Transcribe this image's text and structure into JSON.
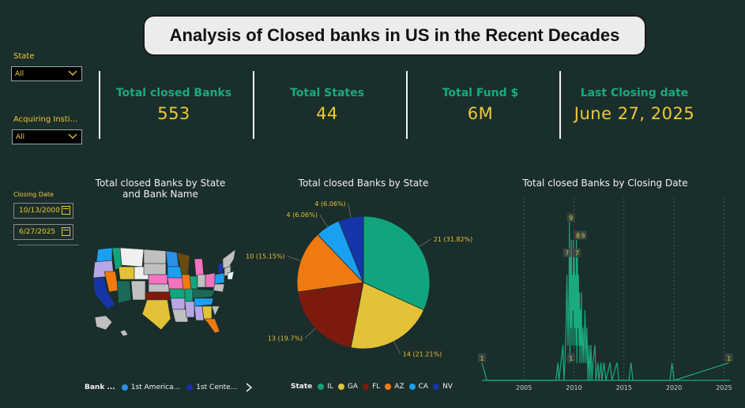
{
  "title": "Analysis of Closed banks in US in the Recent Decades",
  "filters": {
    "state": {
      "label": "State",
      "value": "All"
    },
    "acquiring": {
      "label": "Acquiring Insti...",
      "value": "All"
    },
    "closing_date": {
      "label": "Closing Date",
      "from": "10/13/2000",
      "to": "6/27/2025"
    }
  },
  "kpis": [
    {
      "label": "Total closed Banks",
      "value": "553"
    },
    {
      "label": "Total States",
      "value": "44"
    },
    {
      "label": "Total Fund $",
      "value": "6M"
    },
    {
      "label": "Last Closing date",
      "value": "June 27, 2025"
    }
  ],
  "map_card": {
    "title": "Total closed Banks by State and Bank Name",
    "legend_label": "Bank ...",
    "legend_items": [
      {
        "label": "1st America...",
        "color": "#2b8fe6"
      },
      {
        "label": "1st Cente...",
        "color": "#1c2ea8"
      }
    ]
  },
  "pie_card": {
    "title": "Total closed Banks by State",
    "legend_label": "State"
  },
  "line_card": {
    "title": "Total closed Banks by Closing Date"
  },
  "chart_data": [
    {
      "type": "pie",
      "title": "Total closed Banks by State",
      "legend_title": "State",
      "categories": [
        "IL",
        "GA",
        "FL",
        "AZ",
        "CA",
        "NV"
      ],
      "values": [
        21,
        14,
        13,
        10,
        4,
        4
      ],
      "labels": [
        "21 (31.82%)",
        "14 (21.21%)",
        "13 (19.7%)",
        "10 (15.15%)",
        "4 (6.06%)",
        "4 (6.06%)"
      ],
      "colors": [
        "#10a57e",
        "#e3c238",
        "#7d1a0e",
        "#f07a10",
        "#1aa0f0",
        "#1535a8"
      ]
    },
    {
      "type": "line",
      "title": "Total closed Banks by Closing Date",
      "x_ticks": [
        "2005",
        "2010",
        "2015",
        "2020",
        "2025"
      ],
      "xlim": [
        2000.8,
        2025.6
      ],
      "ylim": [
        0,
        10
      ],
      "color": "#1aaa7c",
      "annotations": [
        {
          "x": 2000.8,
          "y": 1,
          "label": "1"
        },
        {
          "x": 2009.7,
          "y": 9,
          "label": "9"
        },
        {
          "x": 2010.9,
          "y": 8,
          "label": "8"
        },
        {
          "x": 2009.3,
          "y": 7,
          "label": "7"
        },
        {
          "x": 2010.3,
          "y": 7,
          "label": "7"
        },
        {
          "x": 2010.4,
          "y": 8,
          "label": "8"
        },
        {
          "x": 2009.7,
          "y": 1,
          "label": "1"
        },
        {
          "x": 2025.5,
          "y": 1,
          "label": "1"
        }
      ],
      "points": [
        [
          2000.8,
          1
        ],
        [
          2001.3,
          0
        ],
        [
          2008.2,
          0
        ],
        [
          2008.4,
          1
        ],
        [
          2008.5,
          0
        ],
        [
          2008.9,
          2
        ],
        [
          2009.0,
          0
        ],
        [
          2009.1,
          1
        ],
        [
          2009.2,
          3
        ],
        [
          2009.3,
          6
        ],
        [
          2009.4,
          2
        ],
        [
          2009.5,
          5
        ],
        [
          2009.55,
          9
        ],
        [
          2009.6,
          1
        ],
        [
          2009.65,
          7
        ],
        [
          2009.7,
          3
        ],
        [
          2009.75,
          8
        ],
        [
          2009.8,
          2
        ],
        [
          2009.85,
          6
        ],
        [
          2009.9,
          4
        ],
        [
          2009.95,
          8
        ],
        [
          2010.0,
          2
        ],
        [
          2010.05,
          7
        ],
        [
          2010.1,
          3
        ],
        [
          2010.15,
          6
        ],
        [
          2010.2,
          2
        ],
        [
          2010.25,
          8
        ],
        [
          2010.3,
          1
        ],
        [
          2010.35,
          7
        ],
        [
          2010.4,
          3
        ],
        [
          2010.45,
          6
        ],
        [
          2010.5,
          2
        ],
        [
          2010.55,
          5
        ],
        [
          2010.6,
          1
        ],
        [
          2010.65,
          4
        ],
        [
          2010.7,
          2
        ],
        [
          2010.75,
          5
        ],
        [
          2010.8,
          1
        ],
        [
          2010.9,
          3
        ],
        [
          2011.0,
          1
        ],
        [
          2011.1,
          4
        ],
        [
          2011.2,
          1
        ],
        [
          2011.3,
          3
        ],
        [
          2011.4,
          0
        ],
        [
          2011.5,
          2
        ],
        [
          2011.6,
          0
        ],
        [
          2011.7,
          2
        ],
        [
          2011.8,
          0
        ],
        [
          2011.9,
          1
        ],
        [
          2012.1,
          2
        ],
        [
          2012.2,
          0
        ],
        [
          2012.4,
          1
        ],
        [
          2012.5,
          0
        ],
        [
          2012.7,
          1
        ],
        [
          2012.8,
          0
        ],
        [
          2013.0,
          1
        ],
        [
          2013.2,
          0
        ],
        [
          2013.6,
          1
        ],
        [
          2013.8,
          0
        ],
        [
          2014.3,
          1
        ],
        [
          2014.5,
          0
        ],
        [
          2015.5,
          0
        ],
        [
          2015.7,
          1
        ],
        [
          2015.9,
          0
        ],
        [
          2019.6,
          0
        ],
        [
          2019.8,
          1
        ],
        [
          2020.0,
          0
        ],
        [
          2025.5,
          1
        ]
      ]
    }
  ]
}
